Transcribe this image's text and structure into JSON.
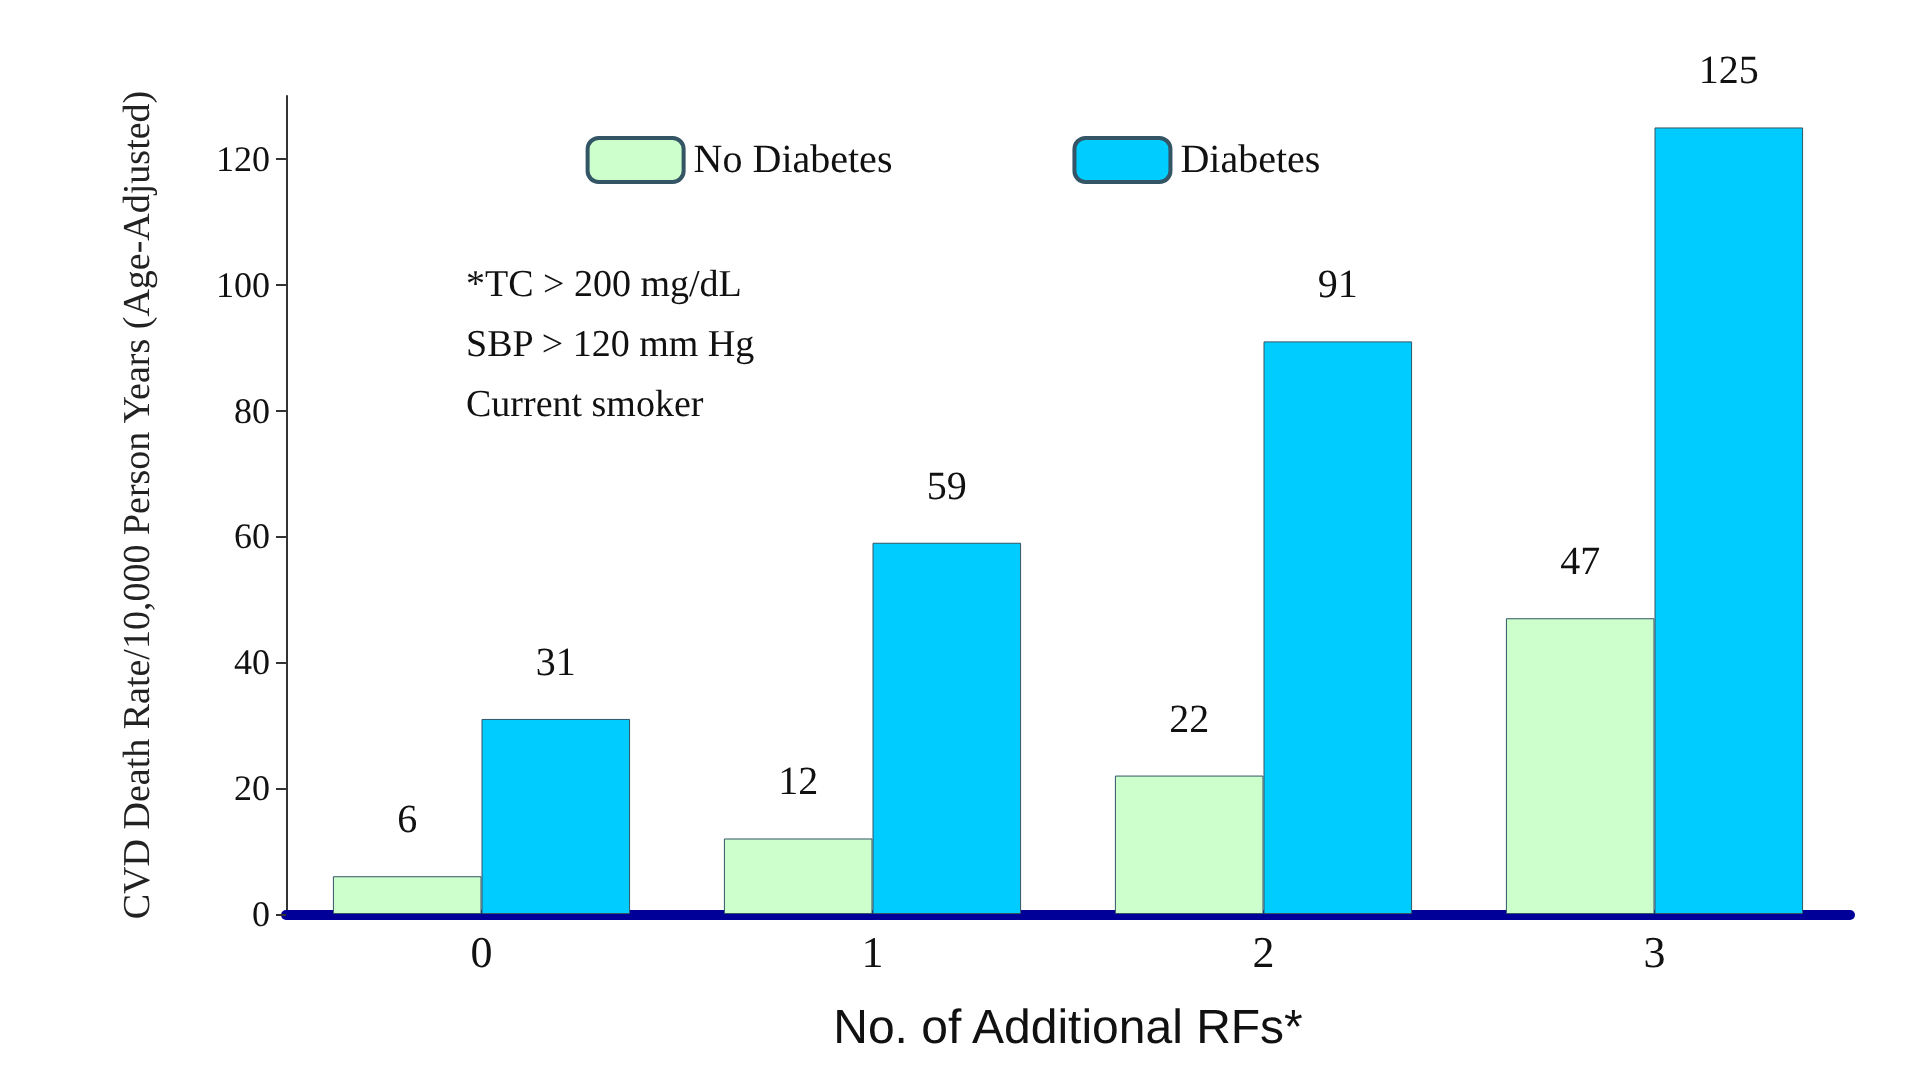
{
  "chart_data": {
    "type": "bar",
    "categories": [
      "0",
      "1",
      "2",
      "3"
    ],
    "series": [
      {
        "name": "No Diabetes",
        "color": "#ccffcc",
        "values": [
          6,
          12,
          22,
          47
        ]
      },
      {
        "name": "Diabetes",
        "color": "#00ccff",
        "values": [
          31,
          59,
          91,
          125
        ]
      }
    ],
    "ylim": [
      0,
      130
    ],
    "yticks": [
      0,
      20,
      40,
      60,
      80,
      100,
      120
    ],
    "xlabel": "No. of Additional RFs*",
    "ylabel": "CVD Death Rate/10,000 Person Years (Age-Adjusted)",
    "annotations": [
      "*TC > 200 mg/dL",
      "SBP > 120 mm Hg",
      "Current smoker"
    ],
    "data_labels": true,
    "legend": "top",
    "grid": false
  }
}
